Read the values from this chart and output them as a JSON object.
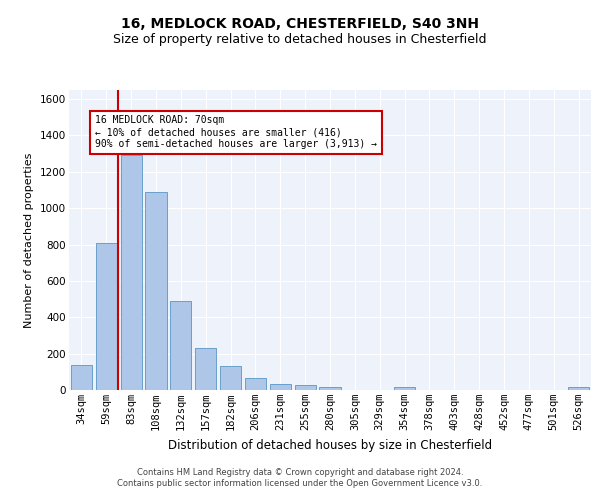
{
  "title1": "16, MEDLOCK ROAD, CHESTERFIELD, S40 3NH",
  "title2": "Size of property relative to detached houses in Chesterfield",
  "xlabel": "Distribution of detached houses by size in Chesterfield",
  "ylabel": "Number of detached properties",
  "categories": [
    "34sqm",
    "59sqm",
    "83sqm",
    "108sqm",
    "132sqm",
    "157sqm",
    "182sqm",
    "206sqm",
    "231sqm",
    "255sqm",
    "280sqm",
    "305sqm",
    "329sqm",
    "354sqm",
    "378sqm",
    "403sqm",
    "428sqm",
    "452sqm",
    "477sqm",
    "501sqm",
    "526sqm"
  ],
  "values": [
    135,
    810,
    1290,
    1090,
    490,
    230,
    130,
    65,
    35,
    25,
    15,
    0,
    0,
    15,
    0,
    0,
    0,
    0,
    0,
    0,
    15
  ],
  "bar_color": "#aec6e8",
  "bar_edge_color": "#5a96c8",
  "red_line_x": 1.46,
  "ylim": [
    0,
    1650
  ],
  "yticks": [
    0,
    200,
    400,
    600,
    800,
    1000,
    1200,
    1400,
    1600
  ],
  "annotation_line1": "16 MEDLOCK ROAD: 70sqm",
  "annotation_line2": "← 10% of detached houses are smaller (416)",
  "annotation_line3": "90% of semi-detached houses are larger (3,913) →",
  "footer_line1": "Contains HM Land Registry data © Crown copyright and database right 2024.",
  "footer_line2": "Contains public sector information licensed under the Open Government Licence v3.0.",
  "bg_color": "#eef2fb",
  "grid_color": "#ffffff",
  "annotation_box_color": "#ffffff",
  "annotation_border_color": "#cc0000",
  "red_line_color": "#cc0000",
  "title_fontsize": 10,
  "subtitle_fontsize": 9,
  "tick_fontsize": 7.5,
  "label_fontsize": 8.5,
  "ylabel_fontsize": 8
}
